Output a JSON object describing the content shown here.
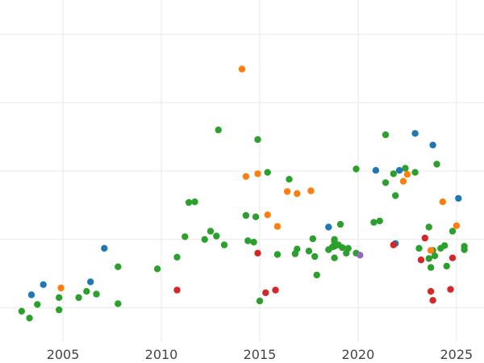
{
  "chart_data": {
    "type": "scatter",
    "title": "",
    "xlabel": "",
    "ylabel": "",
    "xlim": [
      2001.8,
      2026.4
    ],
    "ylim": [
      0,
      5
    ],
    "xticks": [
      2005,
      2010,
      2015,
      2020,
      2025
    ],
    "xtick_labels": [
      "2005",
      "2010",
      "2015",
      "2020",
      "2025"
    ],
    "yticks": [
      0.5,
      1.5,
      2.5,
      3.5,
      4.5
    ],
    "grid": true,
    "legend": "none",
    "series": [
      {
        "name": "green",
        "color": "#2ca02c",
        "points": [
          [
            2002.9,
            0.45
          ],
          [
            2003.3,
            0.35
          ],
          [
            2003.7,
            0.55
          ],
          [
            2004.8,
            0.65
          ],
          [
            2004.8,
            0.47
          ],
          [
            2005.8,
            0.65
          ],
          [
            2006.2,
            0.74
          ],
          [
            2006.7,
            0.7
          ],
          [
            2007.8,
            1.1
          ],
          [
            2007.8,
            0.56
          ],
          [
            2009.8,
            1.07
          ],
          [
            2010.8,
            1.24
          ],
          [
            2011.2,
            1.54
          ],
          [
            2011.4,
            2.04
          ],
          [
            2011.7,
            2.05
          ],
          [
            2012.2,
            1.5
          ],
          [
            2012.5,
            1.62
          ],
          [
            2012.8,
            1.55
          ],
          [
            2012.9,
            3.1
          ],
          [
            2013.2,
            1.42
          ],
          [
            2014.3,
            1.85
          ],
          [
            2014.4,
            1.48
          ],
          [
            2014.7,
            1.46
          ],
          [
            2014.8,
            1.83
          ],
          [
            2014.9,
            2.96
          ],
          [
            2015.0,
            0.6
          ],
          [
            2015.4,
            2.48
          ],
          [
            2015.9,
            1.28
          ],
          [
            2016.5,
            2.38
          ],
          [
            2016.8,
            1.29
          ],
          [
            2016.9,
            1.36
          ],
          [
            2017.5,
            1.33
          ],
          [
            2017.7,
            1.51
          ],
          [
            2017.8,
            1.25
          ],
          [
            2017.9,
            0.98
          ],
          [
            2018.5,
            1.35
          ],
          [
            2018.7,
            1.39
          ],
          [
            2018.8,
            1.4
          ],
          [
            2018.8,
            1.5
          ],
          [
            2018.8,
            1.23
          ],
          [
            2018.8,
            1.47
          ],
          [
            2019.0,
            1.42
          ],
          [
            2019.1,
            1.72
          ],
          [
            2019.2,
            1.38
          ],
          [
            2019.4,
            1.3
          ],
          [
            2019.5,
            1.37
          ],
          [
            2019.9,
            2.53
          ],
          [
            2019.9,
            1.3
          ],
          [
            2020.8,
            1.75
          ],
          [
            2021.1,
            1.77
          ],
          [
            2021.4,
            2.33
          ],
          [
            2021.4,
            3.03
          ],
          [
            2021.8,
            2.46
          ],
          [
            2021.9,
            2.14
          ],
          [
            2022.4,
            2.54
          ],
          [
            2022.9,
            2.48
          ],
          [
            2023.1,
            1.37
          ],
          [
            2023.6,
            1.68
          ],
          [
            2023.6,
            1.22
          ],
          [
            2023.7,
            1.09
          ],
          [
            2023.8,
            1.34
          ],
          [
            2023.9,
            1.26
          ],
          [
            2024.0,
            2.6
          ],
          [
            2024.2,
            1.37
          ],
          [
            2024.4,
            1.41
          ],
          [
            2024.5,
            1.11
          ],
          [
            2024.8,
            1.62
          ],
          [
            2025.4,
            1.4
          ],
          [
            2025.4,
            1.35
          ]
        ]
      },
      {
        "name": "blue",
        "color": "#1f77b4",
        "points": [
          [
            2003.4,
            0.69
          ],
          [
            2004.0,
            0.84
          ],
          [
            2006.4,
            0.88
          ],
          [
            2007.1,
            1.37
          ],
          [
            2018.5,
            1.68
          ],
          [
            2020.9,
            2.51
          ],
          [
            2021.9,
            1.44
          ],
          [
            2022.1,
            2.51
          ],
          [
            2022.9,
            3.05
          ],
          [
            2023.8,
            2.88
          ],
          [
            2025.1,
            2.1
          ]
        ]
      },
      {
        "name": "orange",
        "color": "#ff7f0e",
        "points": [
          [
            2004.9,
            0.79
          ],
          [
            2014.1,
            3.99
          ],
          [
            2014.3,
            2.42
          ],
          [
            2014.9,
            2.46
          ],
          [
            2015.4,
            1.86
          ],
          [
            2015.9,
            1.69
          ],
          [
            2016.4,
            2.2
          ],
          [
            2016.9,
            2.17
          ],
          [
            2017.6,
            2.21
          ],
          [
            2022.3,
            2.35
          ],
          [
            2022.5,
            2.45
          ],
          [
            2023.7,
            1.34
          ],
          [
            2024.3,
            2.05
          ],
          [
            2025.0,
            1.7
          ]
        ]
      },
      {
        "name": "red",
        "color": "#d62728",
        "points": [
          [
            2010.8,
            0.76
          ],
          [
            2014.9,
            1.3
          ],
          [
            2015.3,
            0.72
          ],
          [
            2015.8,
            0.76
          ],
          [
            2021.8,
            1.42
          ],
          [
            2023.2,
            1.2
          ],
          [
            2023.4,
            1.52
          ],
          [
            2023.7,
            0.74
          ],
          [
            2023.8,
            0.61
          ],
          [
            2024.7,
            0.77
          ],
          [
            2024.8,
            1.23
          ]
        ]
      },
      {
        "name": "purple",
        "color": "#9467bd",
        "points": [
          [
            2020.1,
            1.27
          ]
        ]
      }
    ]
  }
}
